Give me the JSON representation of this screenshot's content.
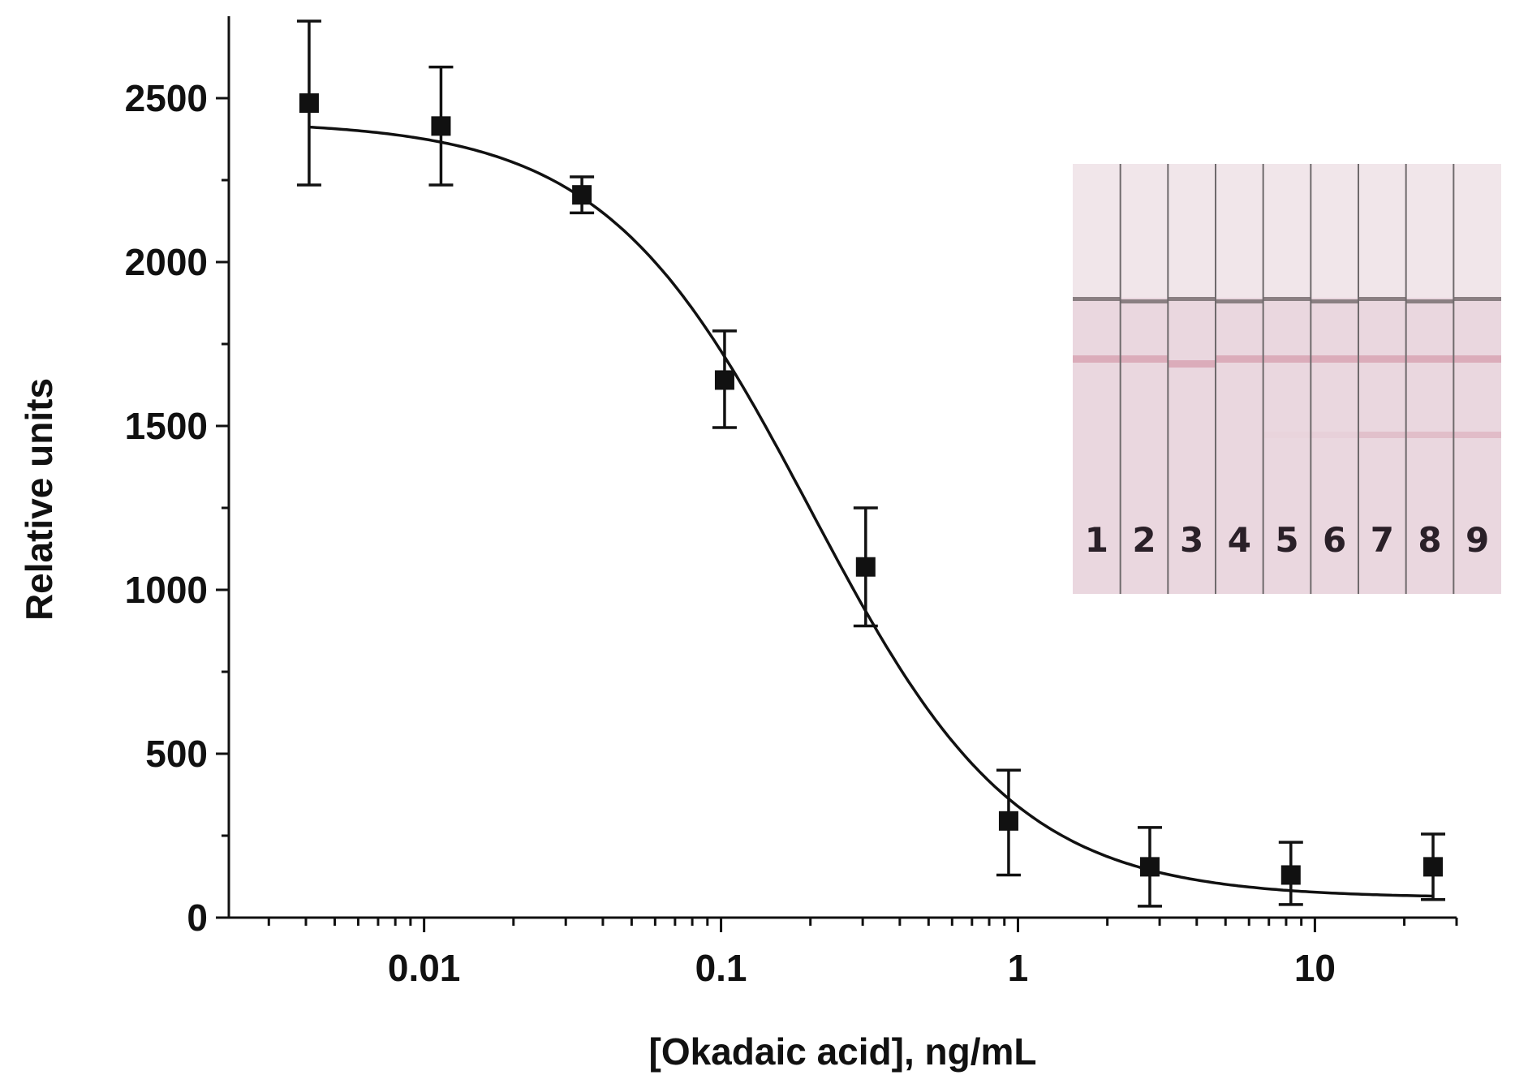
{
  "chart_data": {
    "type": "scatter",
    "xlabel": "[Okadaic acid], ng/mL",
    "ylabel": "Relative units",
    "x_scale": "log",
    "xlim": [
      0.0022,
      30
    ],
    "ylim": [
      0,
      2750
    ],
    "x_ticks": [
      {
        "value": 0.01,
        "label": "0.01"
      },
      {
        "value": 0.1,
        "label": "0.1"
      },
      {
        "value": 1,
        "label": "1"
      },
      {
        "value": 10,
        "label": "10"
      }
    ],
    "y_ticks": [
      {
        "value": 0,
        "label": "0"
      },
      {
        "value": 500,
        "label": "500"
      },
      {
        "value": 1000,
        "label": "1000"
      },
      {
        "value": 1500,
        "label": "1500"
      },
      {
        "value": 2000,
        "label": "2000"
      },
      {
        "value": 2500,
        "label": "2500"
      }
    ],
    "grid": false,
    "legend": "none",
    "points": [
      {
        "x": 0.0041,
        "y": 2485,
        "err_low": 2235,
        "err_high": 2735
      },
      {
        "x": 0.0114,
        "y": 2415,
        "err_low": 2235,
        "err_high": 2595
      },
      {
        "x": 0.034,
        "y": 2205,
        "err_low": 2150,
        "err_high": 2260
      },
      {
        "x": 0.1028,
        "y": 1640,
        "err_low": 1495,
        "err_high": 1790
      },
      {
        "x": 0.307,
        "y": 1070,
        "err_low": 890,
        "err_high": 1250
      },
      {
        "x": 0.93,
        "y": 295,
        "err_low": 130,
        "err_high": 450
      },
      {
        "x": 2.78,
        "y": 155,
        "err_low": 35,
        "err_high": 275
      },
      {
        "x": 8.3,
        "y": 130,
        "err_low": 40,
        "err_high": 230
      },
      {
        "x": 25.0,
        "y": 155,
        "err_low": 55,
        "err_high": 255
      }
    ],
    "fit_curve": {
      "model": "4PL",
      "top": 2430,
      "bottom": 60,
      "ic50": 0.2,
      "hill": 1.25,
      "x_range": [
        0.0041,
        25.0
      ]
    },
    "inset": {
      "description_colors": {
        "strip_background": "#ead7df",
        "strip_top": "#f1e6ea",
        "control_line": "#8a7f82",
        "test_line": "#d8a5b4",
        "divider": "#6f6a6c"
      },
      "lanes": [
        {
          "label": "1",
          "test_line_intensity": 0
        },
        {
          "label": "2",
          "test_line_intensity": 0
        },
        {
          "label": "3",
          "test_line_intensity": 0
        },
        {
          "label": "4",
          "test_line_intensity": 0
        },
        {
          "label": "5",
          "test_line_intensity": 0.05
        },
        {
          "label": "6",
          "test_line_intensity": 0.12
        },
        {
          "label": "7",
          "test_line_intensity": 0.45
        },
        {
          "label": "8",
          "test_line_intensity": 0.5
        },
        {
          "label": "9",
          "test_line_intensity": 0.55
        }
      ]
    }
  }
}
